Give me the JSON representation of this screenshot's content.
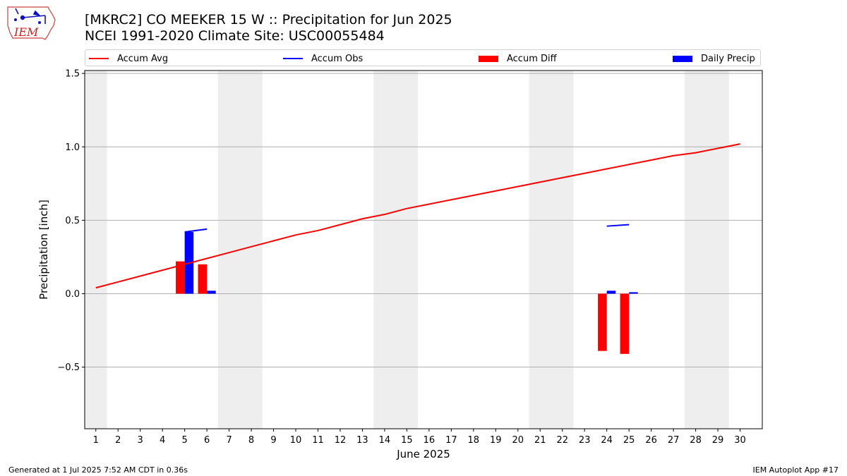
{
  "header": {
    "logo_text": "IEM",
    "title_line1": "[MKRC2] CO MEEKER 15 W :: Precipitation for Jun 2025",
    "title_line2": "NCEI 1991-2020 Climate Site: USC00055484"
  },
  "footer": {
    "left": "Generated at 1 Jul 2025 7:52 AM CDT in 0.36s",
    "right": "IEM Autoplot App #17"
  },
  "colors": {
    "accum_avg": "#ff0000",
    "accum_obs": "#0000ff",
    "accum_diff": "#ff0000",
    "daily_precip": "#0000ff",
    "weekend_shade": "#eeeeee",
    "grid": "#b0b0b0"
  },
  "chart_data": {
    "type": "bar",
    "xlabel": "June 2025",
    "ylabel": "Precipitation [inch]",
    "xlim": [
      0.5,
      31
    ],
    "ylim": [
      -0.92,
      1.52
    ],
    "yticks": [
      1.5,
      1.0,
      0.5,
      0.0,
      -0.5
    ],
    "ytick_labels": [
      "1.5",
      "1.0",
      "0.5",
      "0.0",
      "−0.5"
    ],
    "grid": "y",
    "legend_position": "top",
    "x_days": [
      1,
      2,
      3,
      4,
      5,
      6,
      7,
      8,
      9,
      10,
      11,
      12,
      13,
      14,
      15,
      16,
      17,
      18,
      19,
      20,
      21,
      22,
      23,
      24,
      25,
      26,
      27,
      28,
      29,
      30
    ],
    "weekend_spans": [
      [
        0.5,
        1.5
      ],
      [
        6.5,
        8.5
      ],
      [
        13.5,
        15.5
      ],
      [
        20.5,
        22.5
      ],
      [
        27.5,
        29.5
      ]
    ],
    "series": [
      {
        "name": "Accum Avg",
        "kind": "line",
        "x": [
          1,
          2,
          3,
          4,
          5,
          6,
          7,
          8,
          9,
          10,
          11,
          12,
          13,
          14,
          15,
          16,
          17,
          18,
          19,
          20,
          21,
          22,
          23,
          24,
          25,
          26,
          27,
          28,
          29,
          30
        ],
        "values": [
          0.04,
          0.08,
          0.12,
          0.16,
          0.2,
          0.24,
          0.28,
          0.32,
          0.36,
          0.4,
          0.43,
          0.47,
          0.51,
          0.54,
          0.58,
          0.61,
          0.64,
          0.67,
          0.7,
          0.73,
          0.76,
          0.79,
          0.82,
          0.85,
          0.88,
          0.91,
          0.94,
          0.96,
          0.99,
          1.02
        ]
      },
      {
        "name": "Accum Obs",
        "kind": "line_segments",
        "segments": [
          {
            "x": [
              5,
              6
            ],
            "values": [
              0.42,
              0.44
            ]
          },
          {
            "x": [
              24,
              25
            ],
            "values": [
              0.46,
              0.47
            ]
          }
        ]
      },
      {
        "name": "Accum Diff",
        "kind": "bar",
        "x": [
          5,
          6,
          24,
          25
        ],
        "values": [
          0.22,
          0.2,
          -0.39,
          -0.41
        ]
      },
      {
        "name": "Daily Precip",
        "kind": "bar",
        "x": [
          5,
          6,
          24,
          25
        ],
        "values": [
          0.42,
          0.02,
          0.02,
          0.01
        ]
      }
    ]
  }
}
